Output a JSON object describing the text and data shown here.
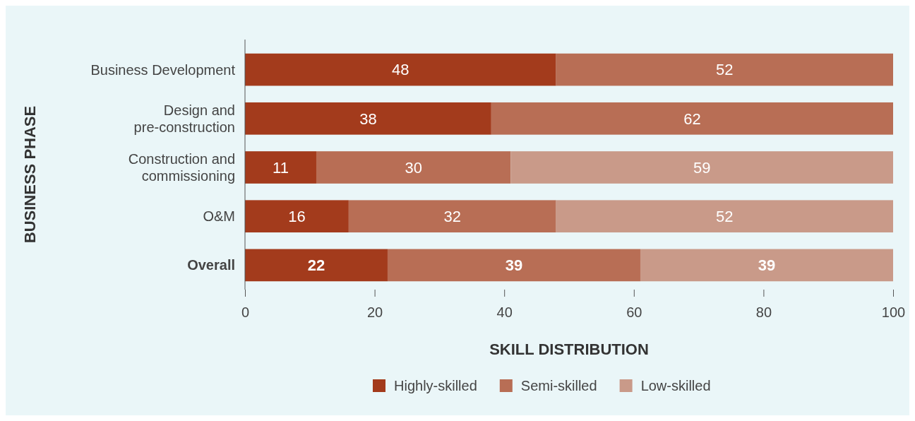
{
  "chart_data": {
    "type": "bar",
    "orientation": "horizontal",
    "stacked": true,
    "xlabel": "SKILL DISTRIBUTION",
    "ylabel": "BUSINESS PHASE",
    "categories": [
      "Business Development",
      "Design and pre-construction",
      "Construction and commissioning",
      "O&M",
      "Overall"
    ],
    "series": [
      {
        "name": "Highly-skilled",
        "color": "#a33b1c",
        "values": [
          48,
          38,
          11,
          16,
          22
        ]
      },
      {
        "name": "Semi-skilled",
        "color": "#b86e55",
        "values": [
          52,
          62,
          30,
          32,
          39
        ]
      },
      {
        "name": "Low-skilled",
        "color": "#c99a89",
        "values": [
          null,
          null,
          59,
          52,
          39
        ]
      }
    ],
    "xlim": [
      0,
      100
    ],
    "xticks": [
      0,
      20,
      40,
      60,
      80,
      100
    ],
    "data_labels": true,
    "legend": "bottom",
    "grid": false
  }
}
